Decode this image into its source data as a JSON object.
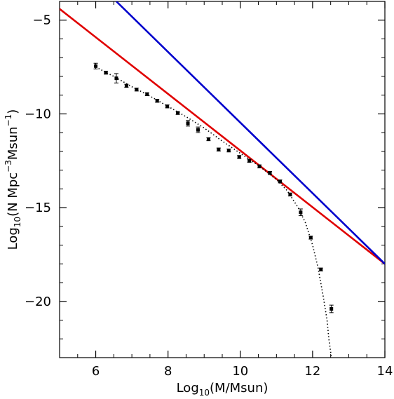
{
  "chart_data": {
    "type": "line",
    "title": "",
    "xlabel": {
      "prefix": "Log",
      "sub": "10",
      "suffix": "(M/Msun)"
    },
    "ylabel": {
      "prefix": "Log",
      "sub": "10",
      "mid": "(N Mpc",
      "sup": "−3",
      "mid2": "Msun",
      "sup2": "−1",
      "suffix": ")"
    },
    "xlim": [
      5,
      14
    ],
    "ylim": [
      -23,
      -4
    ],
    "x_ticks": [
      6,
      8,
      10,
      12,
      14
    ],
    "y_ticks": [
      -5,
      -10,
      -15,
      -20
    ],
    "x_tick_labels": [
      "6",
      "8",
      "10",
      "12",
      "14"
    ],
    "y_tick_labels": [
      "−5",
      "−10",
      "−15",
      "−20"
    ],
    "grid": false,
    "colors": {
      "red_line": "#e00000",
      "blue_line": "#0000cc",
      "points": "#000000",
      "fit": "#000000"
    },
    "series": [
      {
        "kind": "line",
        "color": "red",
        "x": [
          5,
          14
        ],
        "y": [
          -4.4,
          -18.0
        ]
      },
      {
        "kind": "line",
        "color": "blue",
        "x": [
          6.57,
          14
        ],
        "y": [
          -4.0,
          -18.0
        ]
      },
      {
        "kind": "points_with_errorbars",
        "x": [
          6.0,
          6.28,
          6.57,
          6.85,
          7.13,
          7.42,
          7.7,
          7.98,
          8.27,
          8.55,
          8.83,
          9.12,
          9.4,
          9.68,
          9.97,
          10.25,
          10.53,
          10.82,
          11.1,
          11.38,
          11.67,
          11.95,
          12.23,
          12.52
        ],
        "y": [
          -7.45,
          -7.8,
          -8.1,
          -8.5,
          -8.7,
          -8.95,
          -9.3,
          -9.6,
          -9.95,
          -10.5,
          -10.85,
          -11.35,
          -11.9,
          -11.95,
          -12.3,
          -12.5,
          -12.8,
          -13.15,
          -13.6,
          -14.3,
          -15.25,
          -16.6,
          -18.3,
          -20.4
        ],
        "err": [
          0.15,
          0.08,
          0.25,
          0.08,
          0.08,
          0.08,
          0.08,
          0.08,
          0.08,
          0.15,
          0.15,
          0.08,
          0.08,
          0.08,
          0.08,
          0.08,
          0.08,
          0.08,
          0.08,
          0.08,
          0.18,
          0.08,
          0.08,
          0.2
        ]
      },
      {
        "kind": "dotted_fit",
        "x": [
          6.0,
          6.5,
          7.0,
          7.5,
          8.0,
          8.5,
          9.0,
          9.5,
          10.0,
          10.5,
          11.0,
          11.3,
          11.6,
          11.8,
          12.0,
          12.15,
          12.3,
          12.4,
          12.45,
          12.52
        ],
        "y": [
          -7.5,
          -8.0,
          -8.55,
          -9.05,
          -9.6,
          -10.15,
          -10.75,
          -11.45,
          -12.1,
          -12.75,
          -13.5,
          -14.1,
          -15.0,
          -15.8,
          -17.0,
          -18.2,
          -19.8,
          -21.0,
          -22.0,
          -23.0
        ]
      }
    ]
  }
}
